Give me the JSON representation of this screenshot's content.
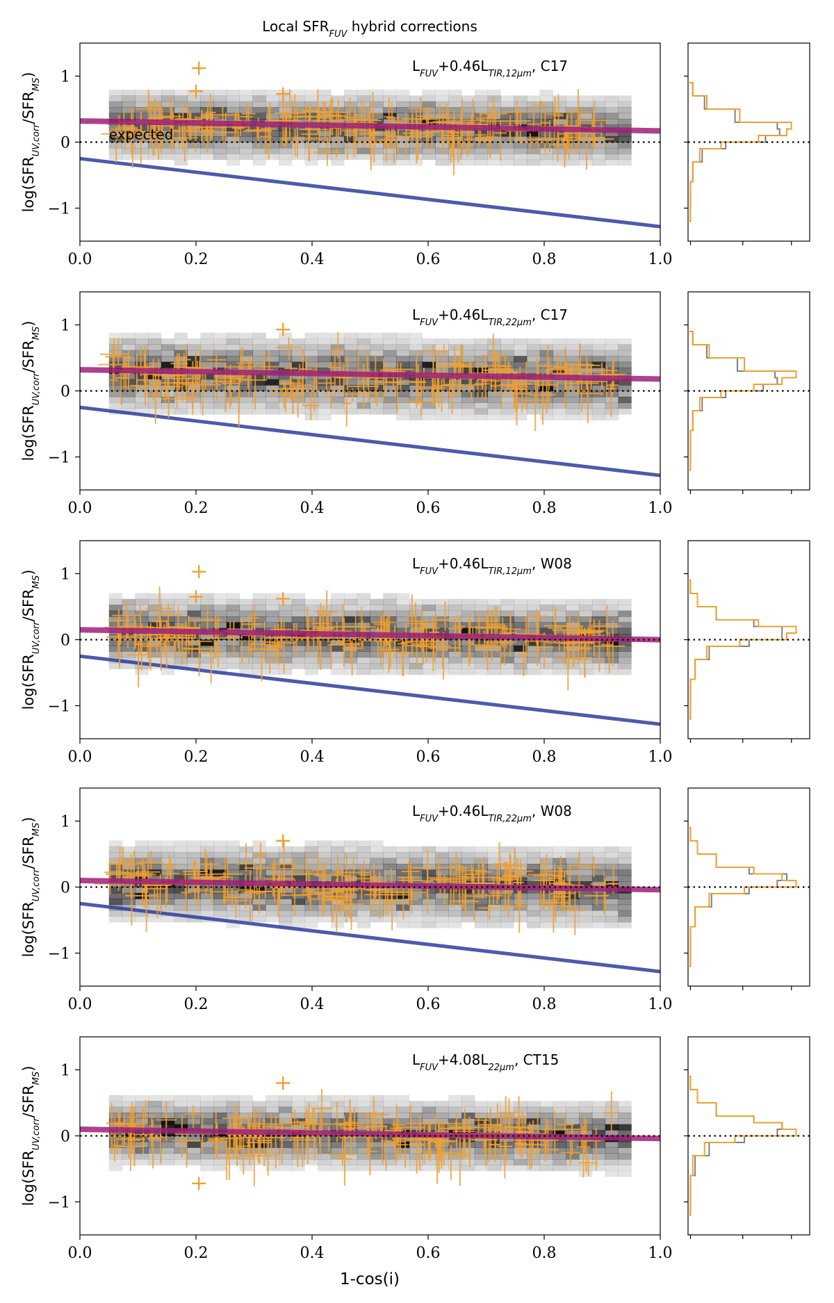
{
  "figure_title": "Local SFR_FUV hybrid corrections",
  "title_parts": {
    "pre": "Local SFR",
    "sub": "FUV",
    "post": " hybrid corrections"
  },
  "x_axis_label": "1-cos(i)",
  "colors": {
    "points": "#f0a030",
    "fit": "#a0207a",
    "expected_line": "#2c3e9e",
    "hist_gray": "#808080",
    "hist_orange": "#f0a030",
    "heat": "#000000"
  },
  "chart_data": [
    {
      "type": "scatter",
      "panel": 1,
      "annotation": {
        "pre": "L",
        "sub1": "FUV",
        "mid": "+0.46L",
        "sub2": "TIR,12μm",
        "post": ", C17"
      },
      "ylabel": {
        "pre": "log(SFR",
        "sub1": "UV,corr",
        "mid": "/SFR",
        "sub2": "MS",
        "post": ")"
      },
      "expected_label": "expected",
      "xlim": [
        0.0,
        1.0
      ],
      "ylim": [
        -1.5,
        1.5
      ],
      "xticks": [
        "0.0",
        "0.2",
        "0.4",
        "0.6",
        "0.8",
        "1.0"
      ],
      "yticks": [
        "1",
        "0",
        "−1"
      ],
      "reference_line": {
        "x": [
          0.0,
          1.0
        ],
        "y": [
          -0.25,
          -1.28
        ]
      },
      "fit_line": {
        "x": [
          0.0,
          1.0
        ],
        "y": [
          0.32,
          0.17
        ]
      },
      "zero_line": 0,
      "points_center_trend": [
        0.28,
        0.17
      ],
      "scatter_sigma": 0.16,
      "outliers": [
        [
          0.205,
          1.12
        ],
        [
          0.2,
          0.77
        ],
        [
          0.35,
          0.73
        ]
      ],
      "histogram": {
        "orientation": "horizontal",
        "bins": [
          -1.2,
          -0.9,
          -0.6,
          -0.3,
          -0.1,
          0.0,
          0.1,
          0.2,
          0.3,
          0.5,
          0.7,
          0.9
        ],
        "orange": [
          1,
          1,
          2,
          5,
          14,
          30,
          42,
          44,
          22,
          8,
          2
        ],
        "gray": [
          1,
          1,
          2,
          6,
          16,
          33,
          39,
          38,
          20,
          7,
          2
        ]
      }
    },
    {
      "type": "scatter",
      "panel": 2,
      "annotation": {
        "pre": "L",
        "sub1": "FUV",
        "mid": "+0.46L",
        "sub2": "TIR,22μm",
        "post": ", C17"
      },
      "ylabel": {
        "pre": "log(SFR",
        "sub1": "UV,corr",
        "mid": "/SFR",
        "sub2": "MS",
        "post": ")"
      },
      "xlim": [
        0.0,
        1.0
      ],
      "ylim": [
        -1.5,
        1.5
      ],
      "xticks": [
        "0.0",
        "0.2",
        "0.4",
        "0.6",
        "0.8",
        "1.0"
      ],
      "yticks": [
        "1",
        "0",
        "−1"
      ],
      "reference_line": {
        "x": [
          0.0,
          1.0
        ],
        "y": [
          -0.25,
          -1.28
        ]
      },
      "fit_line": {
        "x": [
          0.0,
          1.0
        ],
        "y": [
          0.32,
          0.18
        ]
      },
      "zero_line": 0,
      "points_center_trend": [
        0.27,
        0.17
      ],
      "scatter_sigma": 0.18,
      "outliers": [
        [
          0.35,
          0.93
        ]
      ],
      "histogram": {
        "orientation": "horizontal",
        "bins": [
          -1.2,
          -0.9,
          -0.6,
          -0.3,
          -0.1,
          0.0,
          0.1,
          0.2,
          0.3,
          0.5,
          0.7,
          0.9
        ],
        "orange": [
          1,
          1,
          2,
          5,
          14,
          28,
          40,
          46,
          24,
          9,
          2
        ],
        "gray": [
          1,
          1,
          2,
          6,
          16,
          32,
          38,
          37,
          21,
          8,
          2
        ]
      }
    },
    {
      "type": "scatter",
      "panel": 3,
      "annotation": {
        "pre": "L",
        "sub1": "FUV",
        "mid": "+0.46L",
        "sub2": "TIR,12μm",
        "post": ", W08"
      },
      "ylabel": {
        "pre": "log(SFR",
        "sub1": "UV,corr",
        "mid": "/SFR",
        "sub2": "MS",
        "post": ")"
      },
      "xlim": [
        0.0,
        1.0
      ],
      "ylim": [
        -1.5,
        1.5
      ],
      "xticks": [
        "0.0",
        "0.2",
        "0.4",
        "0.6",
        "0.8",
        "1.0"
      ],
      "yticks": [
        "1",
        "0",
        "−1"
      ],
      "reference_line": {
        "x": [
          0.0,
          1.0
        ],
        "y": [
          -0.25,
          -1.28
        ]
      },
      "fit_line": {
        "x": [
          0.0,
          1.0
        ],
        "y": [
          0.15,
          0.0
        ]
      },
      "zero_line": 0,
      "points_center_trend": [
        0.12,
        0.02
      ],
      "scatter_sigma": 0.17,
      "outliers": [
        [
          0.205,
          1.03
        ],
        [
          0.2,
          0.65
        ],
        [
          0.35,
          0.62
        ]
      ],
      "histogram": {
        "orientation": "horizontal",
        "bins": [
          -1.2,
          -0.9,
          -0.6,
          -0.3,
          -0.1,
          0.0,
          0.1,
          0.2,
          0.3,
          0.5,
          0.7,
          0.9
        ],
        "orange": [
          1,
          1,
          3,
          8,
          22,
          42,
          46,
          30,
          12,
          4,
          1
        ],
        "gray": [
          1,
          1,
          3,
          9,
          26,
          40,
          40,
          28,
          12,
          4,
          1
        ]
      }
    },
    {
      "type": "scatter",
      "panel": 4,
      "annotation": {
        "pre": "L",
        "sub1": "FUV",
        "mid": "+0.46L",
        "sub2": "TIR,22μm",
        "post": ", W08"
      },
      "ylabel": {
        "pre": "log(SFR",
        "sub1": "UV,corr",
        "mid": "/SFR",
        "sub2": "MS",
        "post": ")"
      },
      "xlim": [
        0.0,
        1.0
      ],
      "ylim": [
        -1.5,
        1.5
      ],
      "xticks": [
        "0.0",
        "0.2",
        "0.4",
        "0.6",
        "0.8",
        "1.0"
      ],
      "yticks": [
        "1",
        "0",
        "−1"
      ],
      "reference_line": {
        "x": [
          0.0,
          1.0
        ],
        "y": [
          -0.25,
          -1.28
        ]
      },
      "fit_line": {
        "x": [
          0.0,
          1.0
        ],
        "y": [
          0.1,
          -0.04
        ]
      },
      "zero_line": 0,
      "points_center_trend": [
        0.08,
        -0.02
      ],
      "scatter_sigma": 0.18,
      "outliers": [
        [
          0.35,
          0.7
        ]
      ],
      "histogram": {
        "orientation": "horizontal",
        "bins": [
          -1.2,
          -0.9,
          -0.6,
          -0.3,
          -0.1,
          0.0,
          0.1,
          0.2,
          0.3,
          0.5,
          0.7,
          0.9
        ],
        "orange": [
          1,
          1,
          3,
          9,
          24,
          46,
          40,
          28,
          12,
          4,
          1
        ],
        "gray": [
          1,
          1,
          3,
          10,
          26,
          38,
          42,
          26,
          12,
          4,
          1
        ]
      }
    },
    {
      "type": "scatter",
      "panel": 5,
      "annotation": {
        "pre": "L",
        "sub1": "FUV",
        "mid": "+4.08L",
        "sub2": "22μm",
        "post": ", CT15"
      },
      "ylabel": {
        "pre": "log(SFR",
        "sub1": "UV,corr",
        "mid": "/SFR",
        "sub2": "MS",
        "post": ")"
      },
      "xlim": [
        0.0,
        1.0
      ],
      "ylim": [
        -1.5,
        1.5
      ],
      "xticks": [
        "0.0",
        "0.2",
        "0.4",
        "0.6",
        "0.8",
        "1.0"
      ],
      "yticks": [
        "1",
        "0",
        "−1"
      ],
      "reference_line": null,
      "fit_line": {
        "x": [
          0.0,
          1.0
        ],
        "y": [
          0.1,
          -0.04
        ]
      },
      "zero_line": 0,
      "points_center_trend": [
        0.08,
        -0.02
      ],
      "scatter_sigma": 0.16,
      "outliers": [
        [
          0.35,
          0.8
        ],
        [
          0.205,
          -0.72
        ]
      ],
      "histogram": {
        "orientation": "horizontal",
        "bins": [
          -1.2,
          -0.9,
          -0.6,
          -0.3,
          -0.1,
          0.0,
          0.1,
          0.2,
          0.3,
          0.5,
          0.7,
          0.9
        ],
        "orange": [
          1,
          1,
          2,
          7,
          20,
          46,
          40,
          28,
          12,
          4,
          1
        ],
        "gray": [
          1,
          1,
          3,
          9,
          24,
          38,
          40,
          28,
          12,
          4,
          1
        ]
      }
    }
  ]
}
